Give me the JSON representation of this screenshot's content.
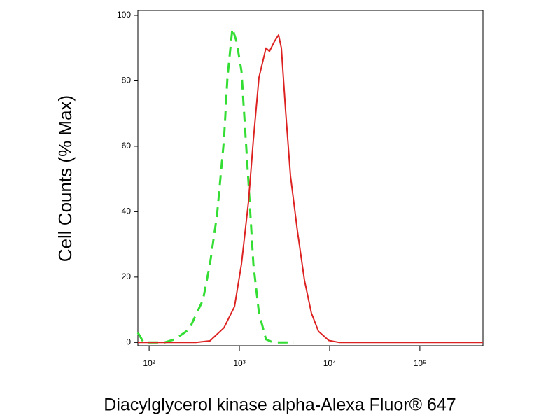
{
  "chart_data": {
    "type": "line",
    "y_label": "Cell Counts (% Max)",
    "x_label": "Diacylglycerol kinase alpha-Alexa Fluor® 647",
    "xlog": true,
    "xlim": [
      75,
      500000
    ],
    "xticks": [
      {
        "value": 100,
        "label": "10²"
      },
      {
        "value": 1000,
        "label": "10³"
      },
      {
        "value": 10000,
        "label": "10⁴"
      },
      {
        "value": 100000,
        "label": "10⁵"
      }
    ],
    "ylim": [
      -1,
      101.5
    ],
    "yticks": [
      0,
      20,
      40,
      60,
      80,
      100
    ],
    "series": [
      {
        "color": "#33dd33",
        "dash": true,
        "x": [
          75,
          87,
          148,
          194,
          277,
          395,
          472,
          565,
          675,
          738,
          836,
          930,
          1054,
          1153,
          1261,
          1429,
          1648,
          1971,
          2357,
          4024
        ],
        "values": [
          3,
          0,
          0,
          1,
          4,
          13,
          24,
          39,
          62,
          81,
          96,
          92,
          83,
          66,
          49,
          24,
          9,
          1,
          0,
          0
        ]
      },
      {
        "color": "#dd2222",
        "dash": false,
        "x": [
          75,
          330,
          472,
          675,
          883,
          1054,
          1261,
          1429,
          1648,
          1971,
          2154,
          2443,
          2718,
          2918,
          3250,
          3681,
          4400,
          5260,
          6284,
          7516,
          9820,
          12850,
          500000
        ],
        "values": [
          0,
          0,
          0.5,
          4.5,
          11,
          24,
          43,
          62,
          81,
          90,
          89,
          92,
          94,
          90,
          71,
          51,
          34,
          19,
          9,
          3.4,
          0.6,
          0,
          0
        ]
      }
    ]
  }
}
